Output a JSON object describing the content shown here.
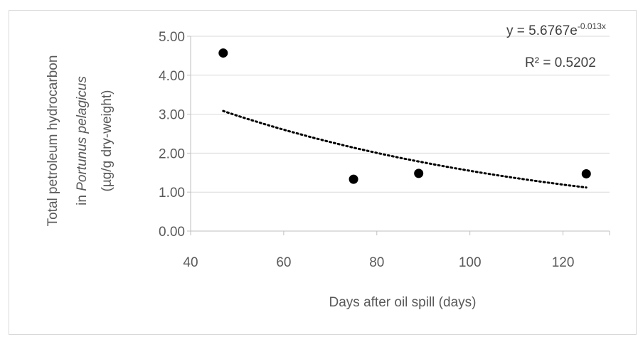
{
  "chart_data": {
    "type": "scatter",
    "xlabel": "Days after oil spill (days)",
    "ylabel_lines": [
      [
        {
          "text": "Total petroleum hydrocarbon",
          "italic": false
        }
      ],
      [
        {
          "text": "in ",
          "italic": false
        },
        {
          "text": "Portunus pelagicus",
          "italic": true
        }
      ],
      [
        {
          "text": "(µg/g dry-weight)",
          "italic": false
        }
      ]
    ],
    "xlim": [
      40,
      130
    ],
    "ylim": [
      0,
      5
    ],
    "x_ticks": [
      "40",
      "60",
      "80",
      "100",
      "120"
    ],
    "y_ticks": [
      "0.00",
      "1.00",
      "2.00",
      "3.00",
      "4.00",
      "5.00"
    ],
    "x_tick_values": [
      40,
      60,
      80,
      100,
      120
    ],
    "y_tick_values": [
      0,
      1,
      2,
      3,
      4,
      5
    ],
    "grid": "horizontal",
    "series": [
      {
        "x": [
          47,
          75,
          89,
          125
        ],
        "y": [
          4.57,
          1.33,
          1.48,
          1.47
        ],
        "color": "#000000",
        "marker": "circle"
      }
    ],
    "trendline": {
      "kind": "exponential",
      "a": 5.6767,
      "b": -0.013,
      "x_range": [
        47,
        125
      ],
      "style": "dotted",
      "color": "#000000"
    },
    "equation_prefix": "y = 5.6767e",
    "equation_exponent": "-0.013x",
    "r_squared_label": "R² = 0.5202"
  }
}
